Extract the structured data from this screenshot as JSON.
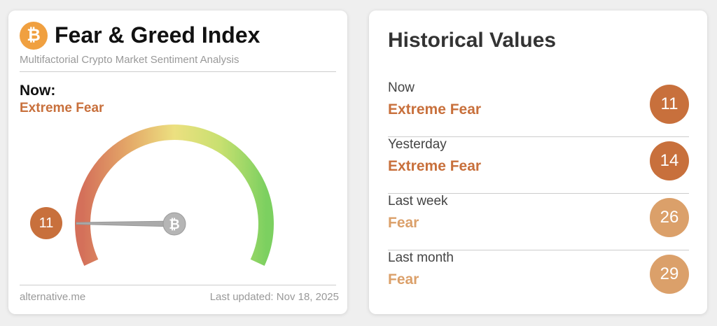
{
  "widget": {
    "title": "Fear & Greed Index",
    "subtitle": "Multifactorial Crypto Market Sentiment Analysis",
    "now_label": "Now:",
    "classification": "Extreme Fear",
    "value": "11",
    "gauge_value": 11,
    "gauge_max": 100,
    "source": "alternative.me",
    "last_updated": "Last updated: Nov 18, 2025",
    "logo_icon": "bitcoin-icon"
  },
  "history": {
    "title": "Historical Values",
    "rows": [
      {
        "label": "Now",
        "classification": "Extreme Fear",
        "value": "11",
        "color": "#c8703c"
      },
      {
        "label": "Yesterday",
        "classification": "Extreme Fear",
        "value": "14",
        "color": "#c8703c"
      },
      {
        "label": "Last week",
        "classification": "Fear",
        "value": "26",
        "color": "#dba06a"
      },
      {
        "label": "Last month",
        "classification": "Fear",
        "value": "29",
        "color": "#dba06a"
      }
    ]
  }
}
